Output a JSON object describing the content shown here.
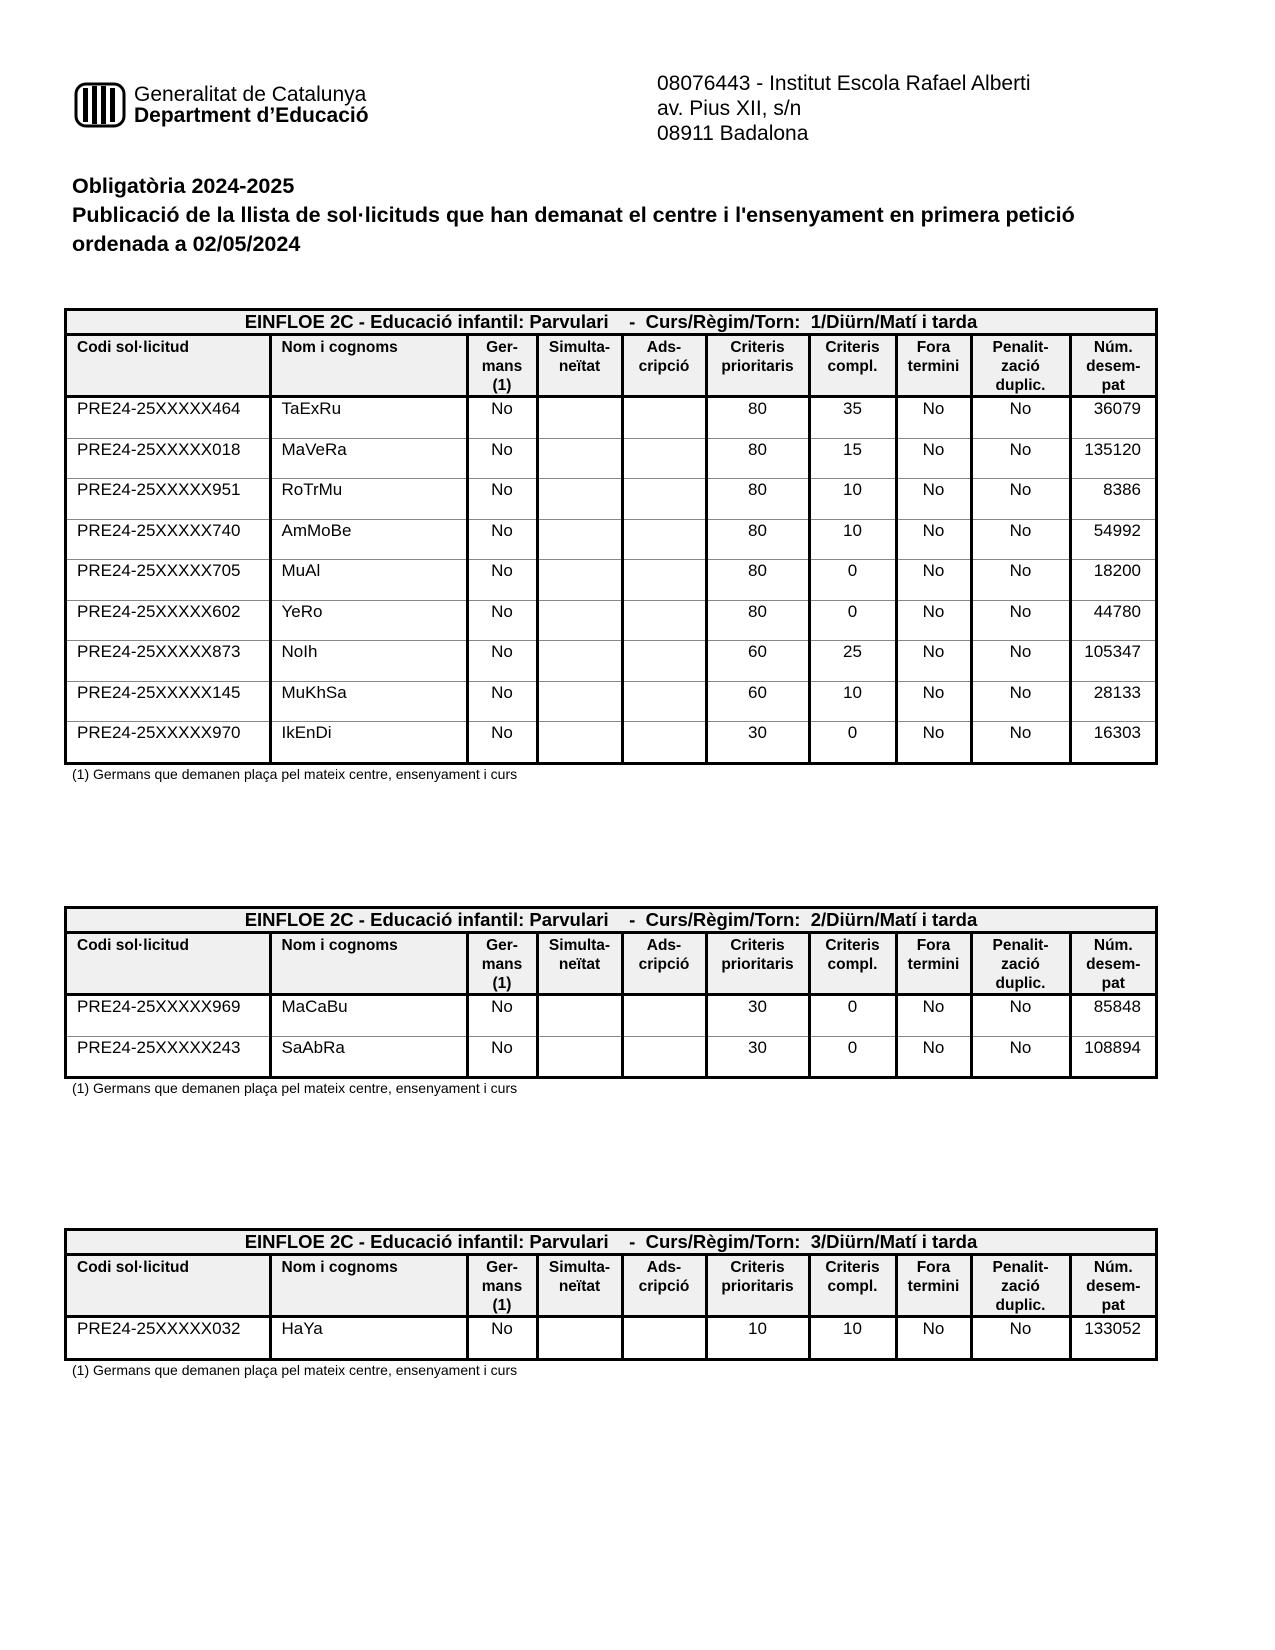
{
  "header": {
    "logo_line1": "Generalitat de Catalunya",
    "logo_line2": "Department d’Educació",
    "center_line1": "08076443 - Institut Escola Rafael Alberti",
    "center_line2": "av. Pius XII, s/n",
    "center_line3": "08911 Badalona"
  },
  "titles": {
    "line1": "Obligatòria 2024-2025",
    "line2": "Publicació de la llista de sol·licituds que han demanat el centre i l'ensenyament en primera petició ordenada a 02/05/2024"
  },
  "columns": [
    "Codi sol·licitud",
    "Nom i cognoms",
    "Ger-\nmans\n(1)",
    "Simulta-\nneïtat",
    "Ads-\ncripció",
    "Criteris\nprioritaris",
    "Criteris\ncompl.",
    "Fora\ntermini",
    "Penalit-\nzació\nduplic.",
    "Núm.\ndesem-\npat"
  ],
  "footnote": "(1)  Germans que demanen plaça pel mateix centre, ensenyament i curs",
  "tables": [
    {
      "title": "EINFLOE 2C - Educació infantil: Parvulari    -  Curs/Règim/Torn:  1/Diürn/Matí i tarda",
      "rows": [
        [
          "PRE24-25XXXXX464",
          "TaExRu",
          "No",
          "",
          "",
          "80",
          "35",
          "No",
          "No",
          "36079"
        ],
        [
          "PRE24-25XXXXX018",
          "MaVeRa",
          "No",
          "",
          "",
          "80",
          "15",
          "No",
          "No",
          "135120"
        ],
        [
          "PRE24-25XXXXX951",
          "RoTrMu",
          "No",
          "",
          "",
          "80",
          "10",
          "No",
          "No",
          "8386"
        ],
        [
          "PRE24-25XXXXX740",
          "AmMoBe",
          "No",
          "",
          "",
          "80",
          "10",
          "No",
          "No",
          "54992"
        ],
        [
          "PRE24-25XXXXX705",
          "MuAl",
          "No",
          "",
          "",
          "80",
          "0",
          "No",
          "No",
          "18200"
        ],
        [
          "PRE24-25XXXXX602",
          "YeRo",
          "No",
          "",
          "",
          "80",
          "0",
          "No",
          "No",
          "44780"
        ],
        [
          "PRE24-25XXXXX873",
          "NoIh",
          "No",
          "",
          "",
          "60",
          "25",
          "No",
          "No",
          "105347"
        ],
        [
          "PRE24-25XXXXX145",
          "MuKhSa",
          "No",
          "",
          "",
          "60",
          "10",
          "No",
          "No",
          "28133"
        ],
        [
          "PRE24-25XXXXX970",
          "IkEnDi",
          "No",
          "",
          "",
          "30",
          "0",
          "No",
          "No",
          "16303"
        ]
      ]
    },
    {
      "title": "EINFLOE 2C - Educació infantil: Parvulari    -  Curs/Règim/Torn:  2/Diürn/Matí i tarda",
      "rows": [
        [
          "PRE24-25XXXXX969",
          "MaCaBu",
          "No",
          "",
          "",
          "30",
          "0",
          "No",
          "No",
          "85848"
        ],
        [
          "PRE24-25XXXXX243",
          "SaAbRa",
          "No",
          "",
          "",
          "30",
          "0",
          "No",
          "No",
          "108894"
        ]
      ]
    },
    {
      "title": "EINFLOE 2C - Educació infantil: Parvulari    -  Curs/Règim/Torn:  3/Diürn/Matí i tarda",
      "rows": [
        [
          "PRE24-25XXXXX032",
          "HaYa",
          "No",
          "",
          "",
          "10",
          "10",
          "No",
          "No",
          "133052"
        ]
      ]
    }
  ]
}
